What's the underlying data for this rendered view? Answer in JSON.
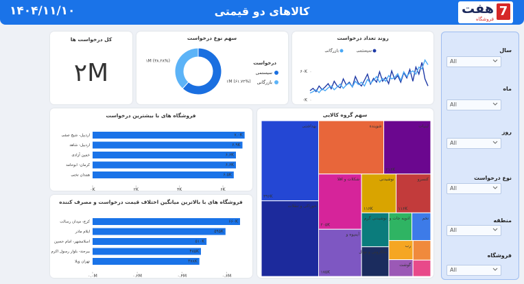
{
  "header": {
    "title": "کالاهای دو قیمتی",
    "date": "۱۴۰۴/۱۱/۱۰",
    "logo_number": "7",
    "logo_text": "هفت",
    "logo_subtext": "فروشگاه"
  },
  "filters": [
    {
      "label": "سال",
      "value": "All"
    },
    {
      "label": "ماه",
      "value": "All"
    },
    {
      "label": "روز",
      "value": "All"
    },
    {
      "label": "نوع درخواست",
      "value": "All"
    },
    {
      "label": "منطقه",
      "value": "All"
    },
    {
      "label": "فروشگاه",
      "value": "All"
    }
  ],
  "chart_data": [
    {
      "type": "card",
      "title": "کل درخواست ها",
      "value": 2000000,
      "value_label": "۲M"
    },
    {
      "type": "pie",
      "title": "سهم نوع درخواست",
      "legend_title": "درخواست",
      "categories": [
        "سیستمی",
        "بازرگانی"
      ],
      "values": [
        61.72,
        38.28
      ],
      "value_labels": [
        "۱M (۶۱.۷۲%)",
        "۱M (۳۸.۲۸%)"
      ],
      "colors": [
        "#1a6fe0",
        "#5cb3f7"
      ],
      "donut": true
    },
    {
      "type": "line",
      "title": "روند تعداد درخواست",
      "series": [
        {
          "name": "سیستمی",
          "color": "#1f3aa6",
          "values": [
            20000,
            25000,
            18000,
            30000,
            22000,
            28000,
            35000,
            24000,
            40000,
            30000,
            26000,
            45000,
            32000,
            38000,
            28000,
            50000,
            36000,
            30000,
            42000,
            55000,
            34000,
            46000,
            38000,
            60000,
            40000,
            48000,
            35000,
            62000,
            44000,
            52000,
            38000,
            58000,
            47000,
            65000,
            40000,
            70000,
            55000,
            80000,
            45000,
            30000
          ]
        },
        {
          "name": "بازرگانی",
          "color": "#4aa8f5",
          "values": [
            15000,
            18000,
            22000,
            16000,
            24000,
            20000,
            26000,
            30000,
            22000,
            28000,
            34000,
            25000,
            32000,
            36000,
            28000,
            40000,
            33000,
            38000,
            30000,
            44000,
            36000,
            42000,
            50000,
            38000,
            46000,
            40000,
            52000,
            45000,
            48000,
            56000,
            42000,
            60000,
            50000,
            58000,
            62000,
            55000,
            70000,
            66000,
            85000,
            75000
          ]
        }
      ],
      "ylim": [
        0,
        90000
      ],
      "yticks": [
        {
          "value": 0,
          "label": "۰K"
        },
        {
          "value": 60000,
          "label": "۶۰K"
        }
      ]
    },
    {
      "type": "bar",
      "orientation": "horizontal",
      "title": "فروشگاه های با بیشترین درخواست",
      "categories": [
        "اردبیل- شیخ صفی",
        "اردبیل- شاهد",
        "خمین آزادی",
        "کرمان- ابوحامد",
        "همدان تختی"
      ],
      "values": [
        7000,
        6900,
        6600,
        6600,
        6500
      ],
      "value_labels": [
        "۷.۰K",
        "۶.۹K",
        "۶.۶K",
        "۶.۶K",
        "۶.۵K"
      ],
      "color": "#1a73e8",
      "xlim": [
        0,
        7200
      ],
      "xticks": [
        {
          "value": 0,
          "label": "۰K"
        },
        {
          "value": 2000,
          "label": "۲K"
        },
        {
          "value": 4000,
          "label": "۴K"
        },
        {
          "value": 6000,
          "label": "۶K"
        }
      ]
    },
    {
      "type": "bar",
      "orientation": "horizontal",
      "title": "فروشگاه های با بالاترین میانگین اختلاف قیمت درخواست و مصرف کننده",
      "categories": [
        "کرج- میدان رسالت",
        "ایلام مادر",
        "اسلامشهر- امام حسین",
        "بیرجند- بلوار رسول اکرم",
        "تهران ویلا"
      ],
      "values": [
        660000,
        595000,
        510000,
        485000,
        478000
      ],
      "value_labels": [
        "۶۶۰K",
        "۵۹۵K",
        "۵۱۰K",
        "۴۸۵K",
        "۴۷۸K"
      ],
      "color": "#1a73e8",
      "xlim": [
        0,
        700000
      ],
      "xticks": [
        {
          "value": 0,
          "label": "۰.۰M"
        },
        {
          "value": 200000,
          "label": "۰.۲M"
        },
        {
          "value": 400000,
          "label": "۰.۴M"
        },
        {
          "value": 600000,
          "label": "۰.۶M"
        }
      ]
    },
    {
      "type": "treemap",
      "title": "سهم گروه کالایی",
      "categories": [
        "بهداشتی",
        "خوراکی و تنقلات",
        "شوینده",
        "لبنیات",
        "شکلات و اقلا",
        "آبمیوه و",
        "نوشیدنی",
        "کنسرو",
        "نوشیدنی گرم",
        "ماکارونی و نودل",
        "ادویه جات و",
        "تخم",
        "رب",
        "گوشت",
        null,
        null
      ],
      "values": [
        396000,
        374000,
        300000,
        216000,
        205000,
        175000,
        116000,
        116000,
        80000,
        70000,
        55000,
        45000,
        40000,
        35000,
        30000,
        25000
      ],
      "value_labels": [
        "۳۹۶K",
        null,
        null,
        "۲۱۶K",
        "۲۰۵K",
        "۱۷۵K",
        "۱۱۶K",
        "۱۱۶K",
        null,
        null,
        null,
        null,
        null,
        null,
        null,
        null
      ],
      "colors": [
        "#2447d4",
        "#1c2a9c",
        "#e8663a",
        "#6b078f",
        "#d6249a",
        "#7e57c2",
        "#d9a400",
        "#c23b3b",
        "#0b7c7c",
        "#1b2c5e",
        "#2fb463",
        "#3d7be8",
        "#f5a623",
        "#9b59b6",
        "#f08a3c",
        "#e84a8a"
      ]
    }
  ]
}
